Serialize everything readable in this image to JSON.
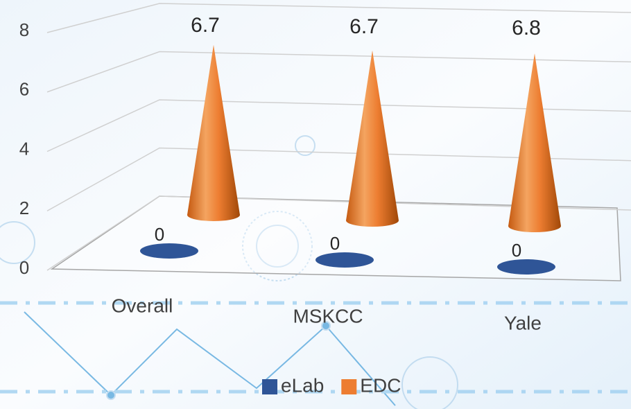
{
  "chart_data": {
    "type": "cone",
    "categories": [
      "Overall",
      "MSKCC",
      "Yale"
    ],
    "series": [
      {
        "name": "eLab",
        "color": "#2f5597",
        "values": [
          0,
          0,
          0
        ]
      },
      {
        "name": "EDC",
        "color": "#ed7d31",
        "values": [
          6.7,
          6.7,
          6.8
        ]
      }
    ],
    "ylim": [
      0,
      8
    ],
    "yticks": [
      0,
      2,
      4,
      6,
      8
    ],
    "grid": true,
    "legend": "bottom"
  }
}
